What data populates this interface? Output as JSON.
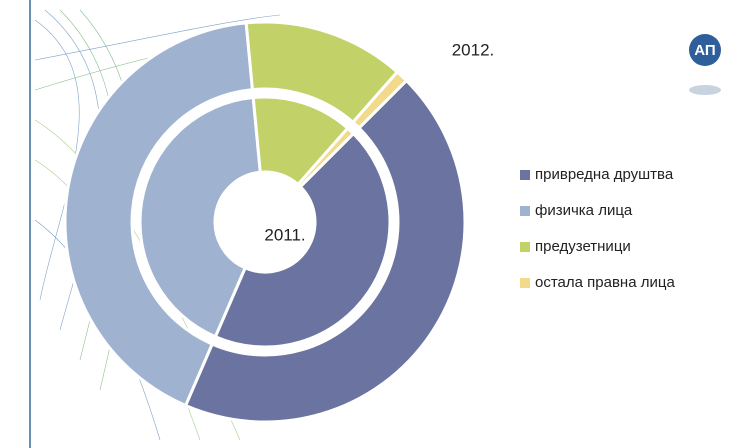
{
  "chart_data": {
    "type": "donut",
    "categories": [
      "привредна друштва",
      "физичка лица",
      "предузетници",
      "остала правна лица"
    ],
    "colors": [
      "#6b74a0",
      "#9fb3d0",
      "#c3d169",
      "#f3d98a"
    ],
    "series": [
      {
        "name": "2011.",
        "values": [
          44,
          42,
          13,
          1
        ]
      },
      {
        "name": "2012.",
        "values": [
          44,
          42,
          13,
          1
        ]
      }
    ],
    "legend": "right"
  }
}
